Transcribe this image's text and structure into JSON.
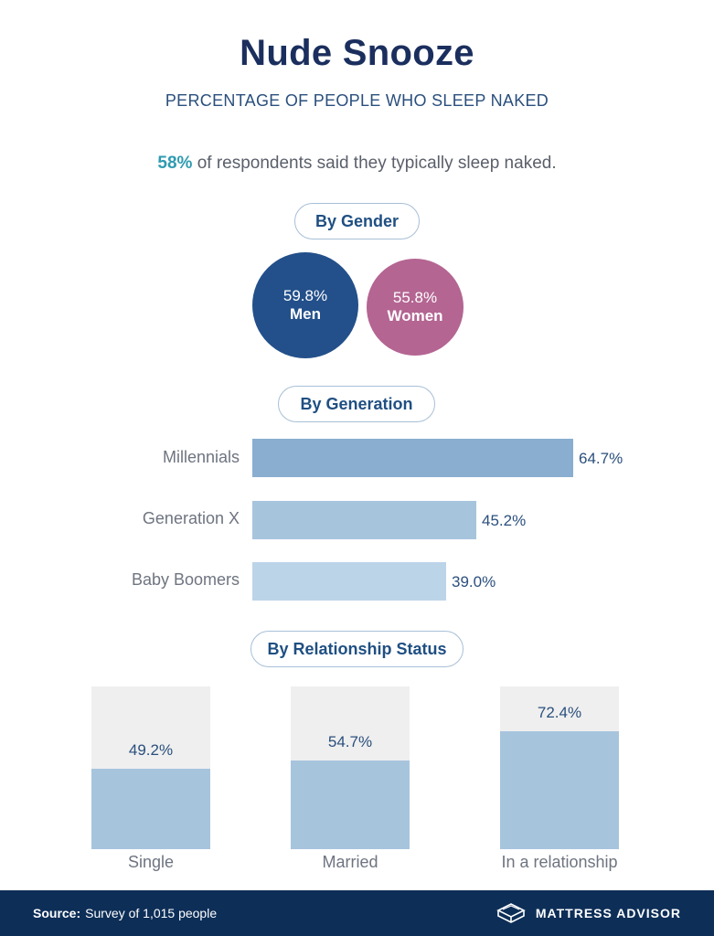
{
  "title": "Nude Snooze",
  "subtitle": "PERCENTAGE OF PEOPLE WHO SLEEP NAKED",
  "headline": {
    "pct": "58%",
    "text": " of respondents said they typically sleep naked."
  },
  "sections": {
    "gender": "By Gender",
    "generation": "By Generation",
    "relationship": "By Relationship Status"
  },
  "gender": [
    {
      "label": "Men",
      "value_label": "59.8%",
      "value": 59.8,
      "color": "#23508a"
    },
    {
      "label": "Women",
      "value_label": "55.8%",
      "value": 55.8,
      "color": "#b46592"
    }
  ],
  "generation": [
    {
      "label": "Millennials",
      "value_label": "64.7%",
      "value": 64.7,
      "color": "#89aecf"
    },
    {
      "label": "Generation X",
      "value_label": "45.2%",
      "value": 45.2,
      "color": "#a7c4dd"
    },
    {
      "label": "Baby Boomers",
      "value_label": "39.0%",
      "value": 39.0,
      "color": "#bcd4e8"
    }
  ],
  "relationship": [
    {
      "label": "Single",
      "value_label": "49.2%",
      "value": 49.2
    },
    {
      "label": "Married",
      "value_label": "54.7%",
      "value": 54.7
    },
    {
      "label": "In a relationship",
      "value_label": "72.4%",
      "value": 72.4
    }
  ],
  "footer": {
    "source_label": "Source:",
    "source_text": "Survey of 1,015 people",
    "brand": "MATTRESS ADVISOR",
    "brand_icon": "mattress-icon"
  },
  "chart_data": [
    {
      "type": "bar",
      "title": "By Gender",
      "categories": [
        "Men",
        "Women"
      ],
      "values": [
        59.8,
        55.8
      ],
      "ylabel": "Percentage of people who sleep naked"
    },
    {
      "type": "bar",
      "orientation": "horizontal",
      "title": "By Generation",
      "categories": [
        "Millennials",
        "Generation X",
        "Baby Boomers"
      ],
      "values": [
        64.7,
        45.2,
        39.0
      ],
      "xlim": [
        0,
        100
      ]
    },
    {
      "type": "bar",
      "title": "By Relationship Status",
      "categories": [
        "Single",
        "Married",
        "In a relationship"
      ],
      "values": [
        49.2,
        54.7,
        72.4
      ],
      "ylim": [
        0,
        100
      ]
    }
  ]
}
